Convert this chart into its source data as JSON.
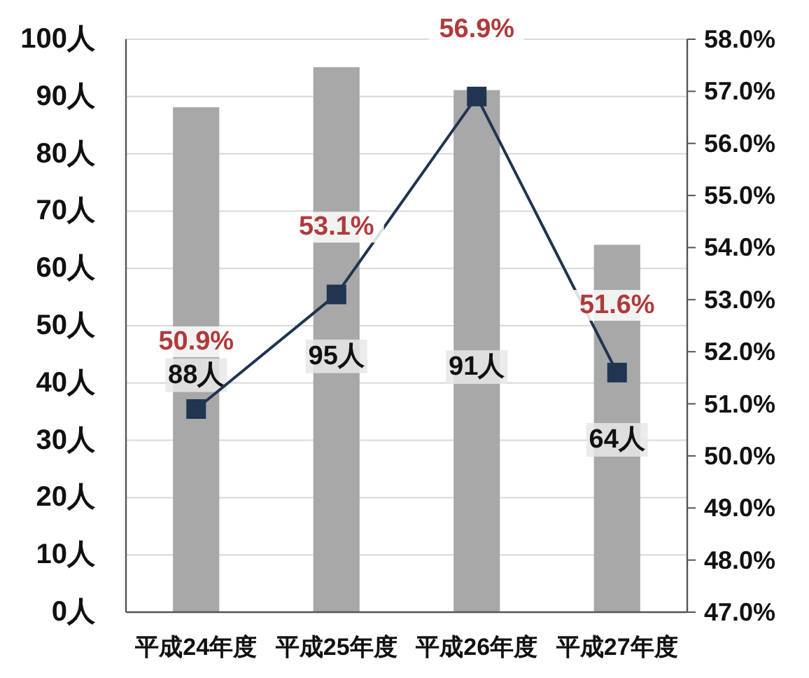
{
  "chart_data": {
    "type": "bar",
    "categories": [
      "平成24年度",
      "平成25年度",
      "平成26年度",
      "平成27年度"
    ],
    "series": [
      {
        "color": "#a8a8a8",
        "values": [
          88,
          95,
          91,
          64
        ],
        "value_labels": [
          "88人",
          "95人",
          "91人",
          "64人"
        ]
      },
      {
        "type": "line",
        "axis": "y2",
        "color": "#1f3550",
        "marker": "square",
        "values": [
          50.9,
          53.1,
          56.9,
          51.6
        ],
        "value_labels": [
          "50.9%",
          "53.1%",
          "56.9%",
          "51.6%"
        ]
      }
    ],
    "ylim": [
      0,
      100
    ],
    "yticks": [
      {
        "value": 0,
        "label": "0人"
      },
      {
        "value": 10,
        "label": "10人"
      },
      {
        "value": 20,
        "label": "20人"
      },
      {
        "value": 30,
        "label": "30人"
      },
      {
        "value": 40,
        "label": "40人"
      },
      {
        "value": 50,
        "label": "50人"
      },
      {
        "value": 60,
        "label": "60人"
      },
      {
        "value": 70,
        "label": "70人"
      },
      {
        "value": 80,
        "label": "80人"
      },
      {
        "value": 90,
        "label": "90人"
      },
      {
        "value": 100,
        "label": "100人"
      }
    ],
    "y2lim": [
      47,
      58
    ],
    "y2ticks": [
      {
        "value": 47,
        "label": "47.0%"
      },
      {
        "value": 48,
        "label": "48.0%"
      },
      {
        "value": 49,
        "label": "49.0%"
      },
      {
        "value": 50,
        "label": "50.0%"
      },
      {
        "value": 51,
        "label": "51.0%"
      },
      {
        "value": 52,
        "label": "52.0%"
      },
      {
        "value": 53,
        "label": "53.0%"
      },
      {
        "value": 54,
        "label": "54.0%"
      },
      {
        "value": 55,
        "label": "55.0%"
      },
      {
        "value": 56,
        "label": "56.0%"
      },
      {
        "value": 57,
        "label": "57.0%"
      },
      {
        "value": 58,
        "label": "58.0%"
      }
    ],
    "grid": "y"
  }
}
